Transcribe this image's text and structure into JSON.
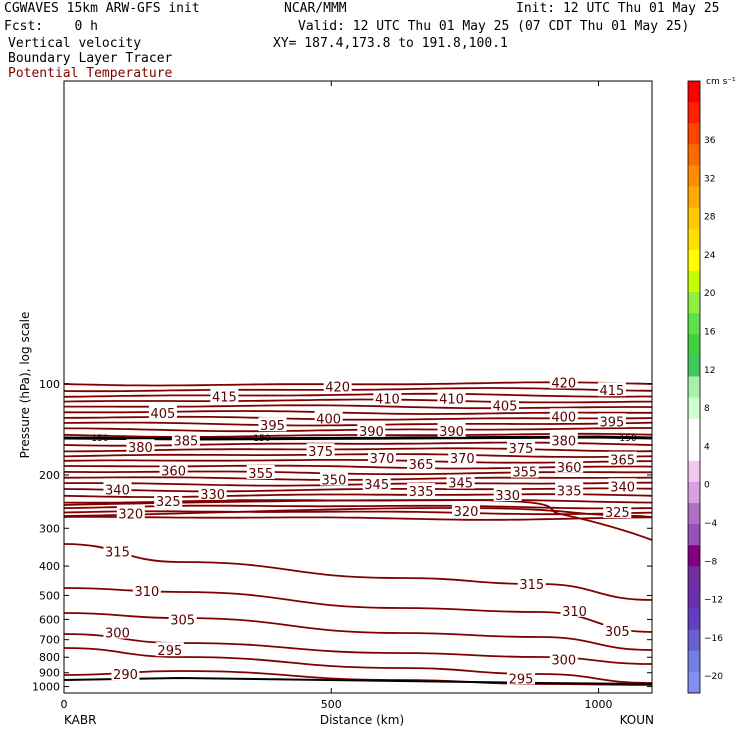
{
  "header": {
    "model": "CGWAVES 15km ARW-GFS init",
    "org": "NCAR/MMM",
    "init": "Init: 12 UTC Thu 01 May 25",
    "fcst": "Fcst:    0 h",
    "valid": "Valid: 12 UTC Thu 01 May 25 (07 CDT Thu 01 May 25)",
    "field1": "Vertical velocity",
    "field2": "Boundary Layer Tracer",
    "field3": "Potential Temperature",
    "xy": "XY= 187.4,173.8 to 191.8,100.1"
  },
  "colors": {
    "contour": "#800000",
    "tropopause_line": "#000000"
  },
  "chart_data": {
    "type": "line",
    "xlabel": "Distance (km)",
    "ylabel": "Pressure (hPa), log scale",
    "xlim": [
      0,
      1100
    ],
    "ylim": [
      1050,
      10
    ],
    "x_ticks": [
      0,
      500,
      1000
    ],
    "y_ticks": [
      100,
      200,
      300,
      400,
      500,
      600,
      700,
      800,
      900,
      1000
    ],
    "x_endpoints": {
      "left": "KABR",
      "right": "KOUN"
    },
    "labels_150": [
      "150",
      "150",
      "150"
    ],
    "contour_labels": [
      {
        "v": "420",
        "x": 512,
        "p": 102
      },
      {
        "v": "420",
        "x": 935,
        "p": 99
      },
      {
        "v": "415",
        "x": 300,
        "p": 110
      },
      {
        "v": "415",
        "x": 1025,
        "p": 105
      },
      {
        "v": "410",
        "x": 605,
        "p": 112
      },
      {
        "v": "410",
        "x": 725,
        "p": 112
      },
      {
        "v": "405",
        "x": 185,
        "p": 125
      },
      {
        "v": "405",
        "x": 825,
        "p": 118
      },
      {
        "v": "400",
        "x": 495,
        "p": 130
      },
      {
        "v": "400",
        "x": 935,
        "p": 128
      },
      {
        "v": "395",
        "x": 390,
        "p": 137
      },
      {
        "v": "395",
        "x": 1025,
        "p": 133
      },
      {
        "v": "390",
        "x": 575,
        "p": 143
      },
      {
        "v": "390",
        "x": 725,
        "p": 143
      },
      {
        "v": "385",
        "x": 228,
        "p": 154
      },
      {
        "v": "380",
        "x": 935,
        "p": 154
      },
      {
        "v": "380",
        "x": 143,
        "p": 162
      },
      {
        "v": "375",
        "x": 480,
        "p": 167
      },
      {
        "v": "375",
        "x": 855,
        "p": 163
      },
      {
        "v": "370",
        "x": 595,
        "p": 176
      },
      {
        "v": "370",
        "x": 745,
        "p": 176
      },
      {
        "v": "365",
        "x": 668,
        "p": 184
      },
      {
        "v": "365",
        "x": 1045,
        "p": 178
      },
      {
        "v": "360",
        "x": 205,
        "p": 193
      },
      {
        "v": "360",
        "x": 945,
        "p": 188
      },
      {
        "v": "355",
        "x": 368,
        "p": 197
      },
      {
        "v": "355",
        "x": 862,
        "p": 195
      },
      {
        "v": "350",
        "x": 505,
        "p": 207
      },
      {
        "v": "345",
        "x": 585,
        "p": 214
      },
      {
        "v": "345",
        "x": 742,
        "p": 212
      },
      {
        "v": "340",
        "x": 100,
        "p": 223
      },
      {
        "v": "340",
        "x": 1045,
        "p": 218
      },
      {
        "v": "335",
        "x": 668,
        "p": 226
      },
      {
        "v": "335",
        "x": 945,
        "p": 225
      },
      {
        "v": "330",
        "x": 278,
        "p": 231
      },
      {
        "v": "330",
        "x": 830,
        "p": 233
      },
      {
        "v": "325",
        "x": 195,
        "p": 244
      },
      {
        "v": "325",
        "x": 1035,
        "p": 265
      },
      {
        "v": "320",
        "x": 125,
        "p": 268
      },
      {
        "v": "320",
        "x": 752,
        "p": 263
      },
      {
        "v": "315",
        "x": 100,
        "p": 358
      },
      {
        "v": "315",
        "x": 875,
        "p": 458
      },
      {
        "v": "310",
        "x": 155,
        "p": 483
      },
      {
        "v": "310",
        "x": 955,
        "p": 562
      },
      {
        "v": "305",
        "x": 222,
        "p": 600
      },
      {
        "v": "305",
        "x": 1035,
        "p": 655
      },
      {
        "v": "300",
        "x": 100,
        "p": 663
      },
      {
        "v": "300",
        "x": 935,
        "p": 815
      },
      {
        "v": "295",
        "x": 198,
        "p": 758
      },
      {
        "v": "295",
        "x": 855,
        "p": 940
      },
      {
        "v": "290",
        "x": 115,
        "p": 910
      }
    ],
    "colorbar": {
      "units": "cm s⁻¹",
      "labels": [
        "36",
        "32",
        "28",
        "24",
        "20",
        "16",
        "12",
        "8",
        "4",
        "0",
        "−4",
        "−8",
        "−12",
        "−16",
        "−20"
      ],
      "colors": [
        "#ff0000",
        "#ff2000",
        "#ff4500",
        "#ff6a00",
        "#ff8c00",
        "#ffaa00",
        "#ffc800",
        "#ffe000",
        "#ffff00",
        "#c8ff00",
        "#90ee40",
        "#5ee04a",
        "#40d040",
        "#40c860",
        "#a8f0a8",
        "#d0ffd0",
        "#ffffff",
        "#ffffff",
        "#f0c8f0",
        "#d8a0e0",
        "#b070c8",
        "#9850b8",
        "#800080",
        "#7030a0",
        "#6a30b0",
        "#6040c0",
        "#6860d0",
        "#7080e0",
        "#8090f0"
      ]
    }
  }
}
